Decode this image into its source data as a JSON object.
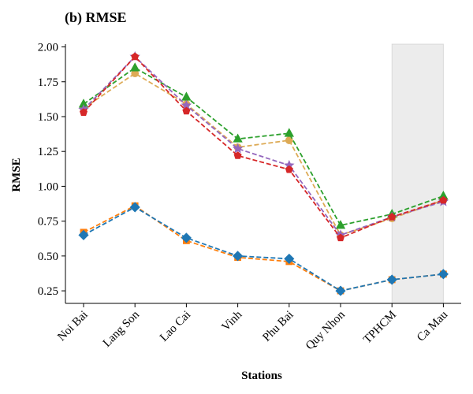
{
  "chart_data": {
    "type": "line",
    "title": "(b) RMSE",
    "xlabel": "Stations",
    "ylabel": "RMSE",
    "categories": [
      "Noi Bai",
      "Lang Son",
      "Lao Cai",
      "Vinh",
      "Phu Bai",
      "Quy Nhon",
      "TPHCM",
      "Ca Mau"
    ],
    "ylim": [
      0.16,
      2.02
    ],
    "yticks": [
      0.25,
      0.5,
      0.75,
      1.0,
      1.25,
      1.5,
      1.75,
      2.0
    ],
    "ytick_labels": [
      "0.25",
      "0.50",
      "0.75",
      "1.00",
      "1.25",
      "1.50",
      "1.75",
      "2.00"
    ],
    "grid": false,
    "legend": "none",
    "highlight_band": {
      "from_category": "TPHCM",
      "to_category": "Ca Mau",
      "color": "#d9d9d9"
    },
    "series": [
      {
        "color": "#ff7f0e",
        "marker": "square",
        "values": [
          0.67,
          0.86,
          0.61,
          0.49,
          0.46,
          0.25,
          0.33,
          0.37
        ]
      },
      {
        "color": "#1f77b4",
        "marker": "diamond",
        "values": [
          0.65,
          0.85,
          0.63,
          0.5,
          0.48,
          0.25,
          0.33,
          0.37
        ]
      },
      {
        "color": "#ddaa55",
        "marker": "circle",
        "values": [
          1.56,
          1.81,
          1.59,
          1.28,
          1.33,
          0.65,
          0.77,
          0.9
        ]
      },
      {
        "color": "#2ca02c",
        "marker": "triangle",
        "values": [
          1.59,
          1.85,
          1.64,
          1.34,
          1.38,
          0.72,
          0.8,
          0.93
        ]
      },
      {
        "color": "#9467bd",
        "marker": "star",
        "values": [
          1.55,
          1.93,
          1.58,
          1.27,
          1.15,
          0.65,
          0.78,
          0.89
        ]
      },
      {
        "color": "#d62728",
        "marker": "pentagon",
        "values": [
          1.53,
          1.93,
          1.54,
          1.22,
          1.12,
          0.63,
          0.78,
          0.9
        ]
      }
    ]
  }
}
